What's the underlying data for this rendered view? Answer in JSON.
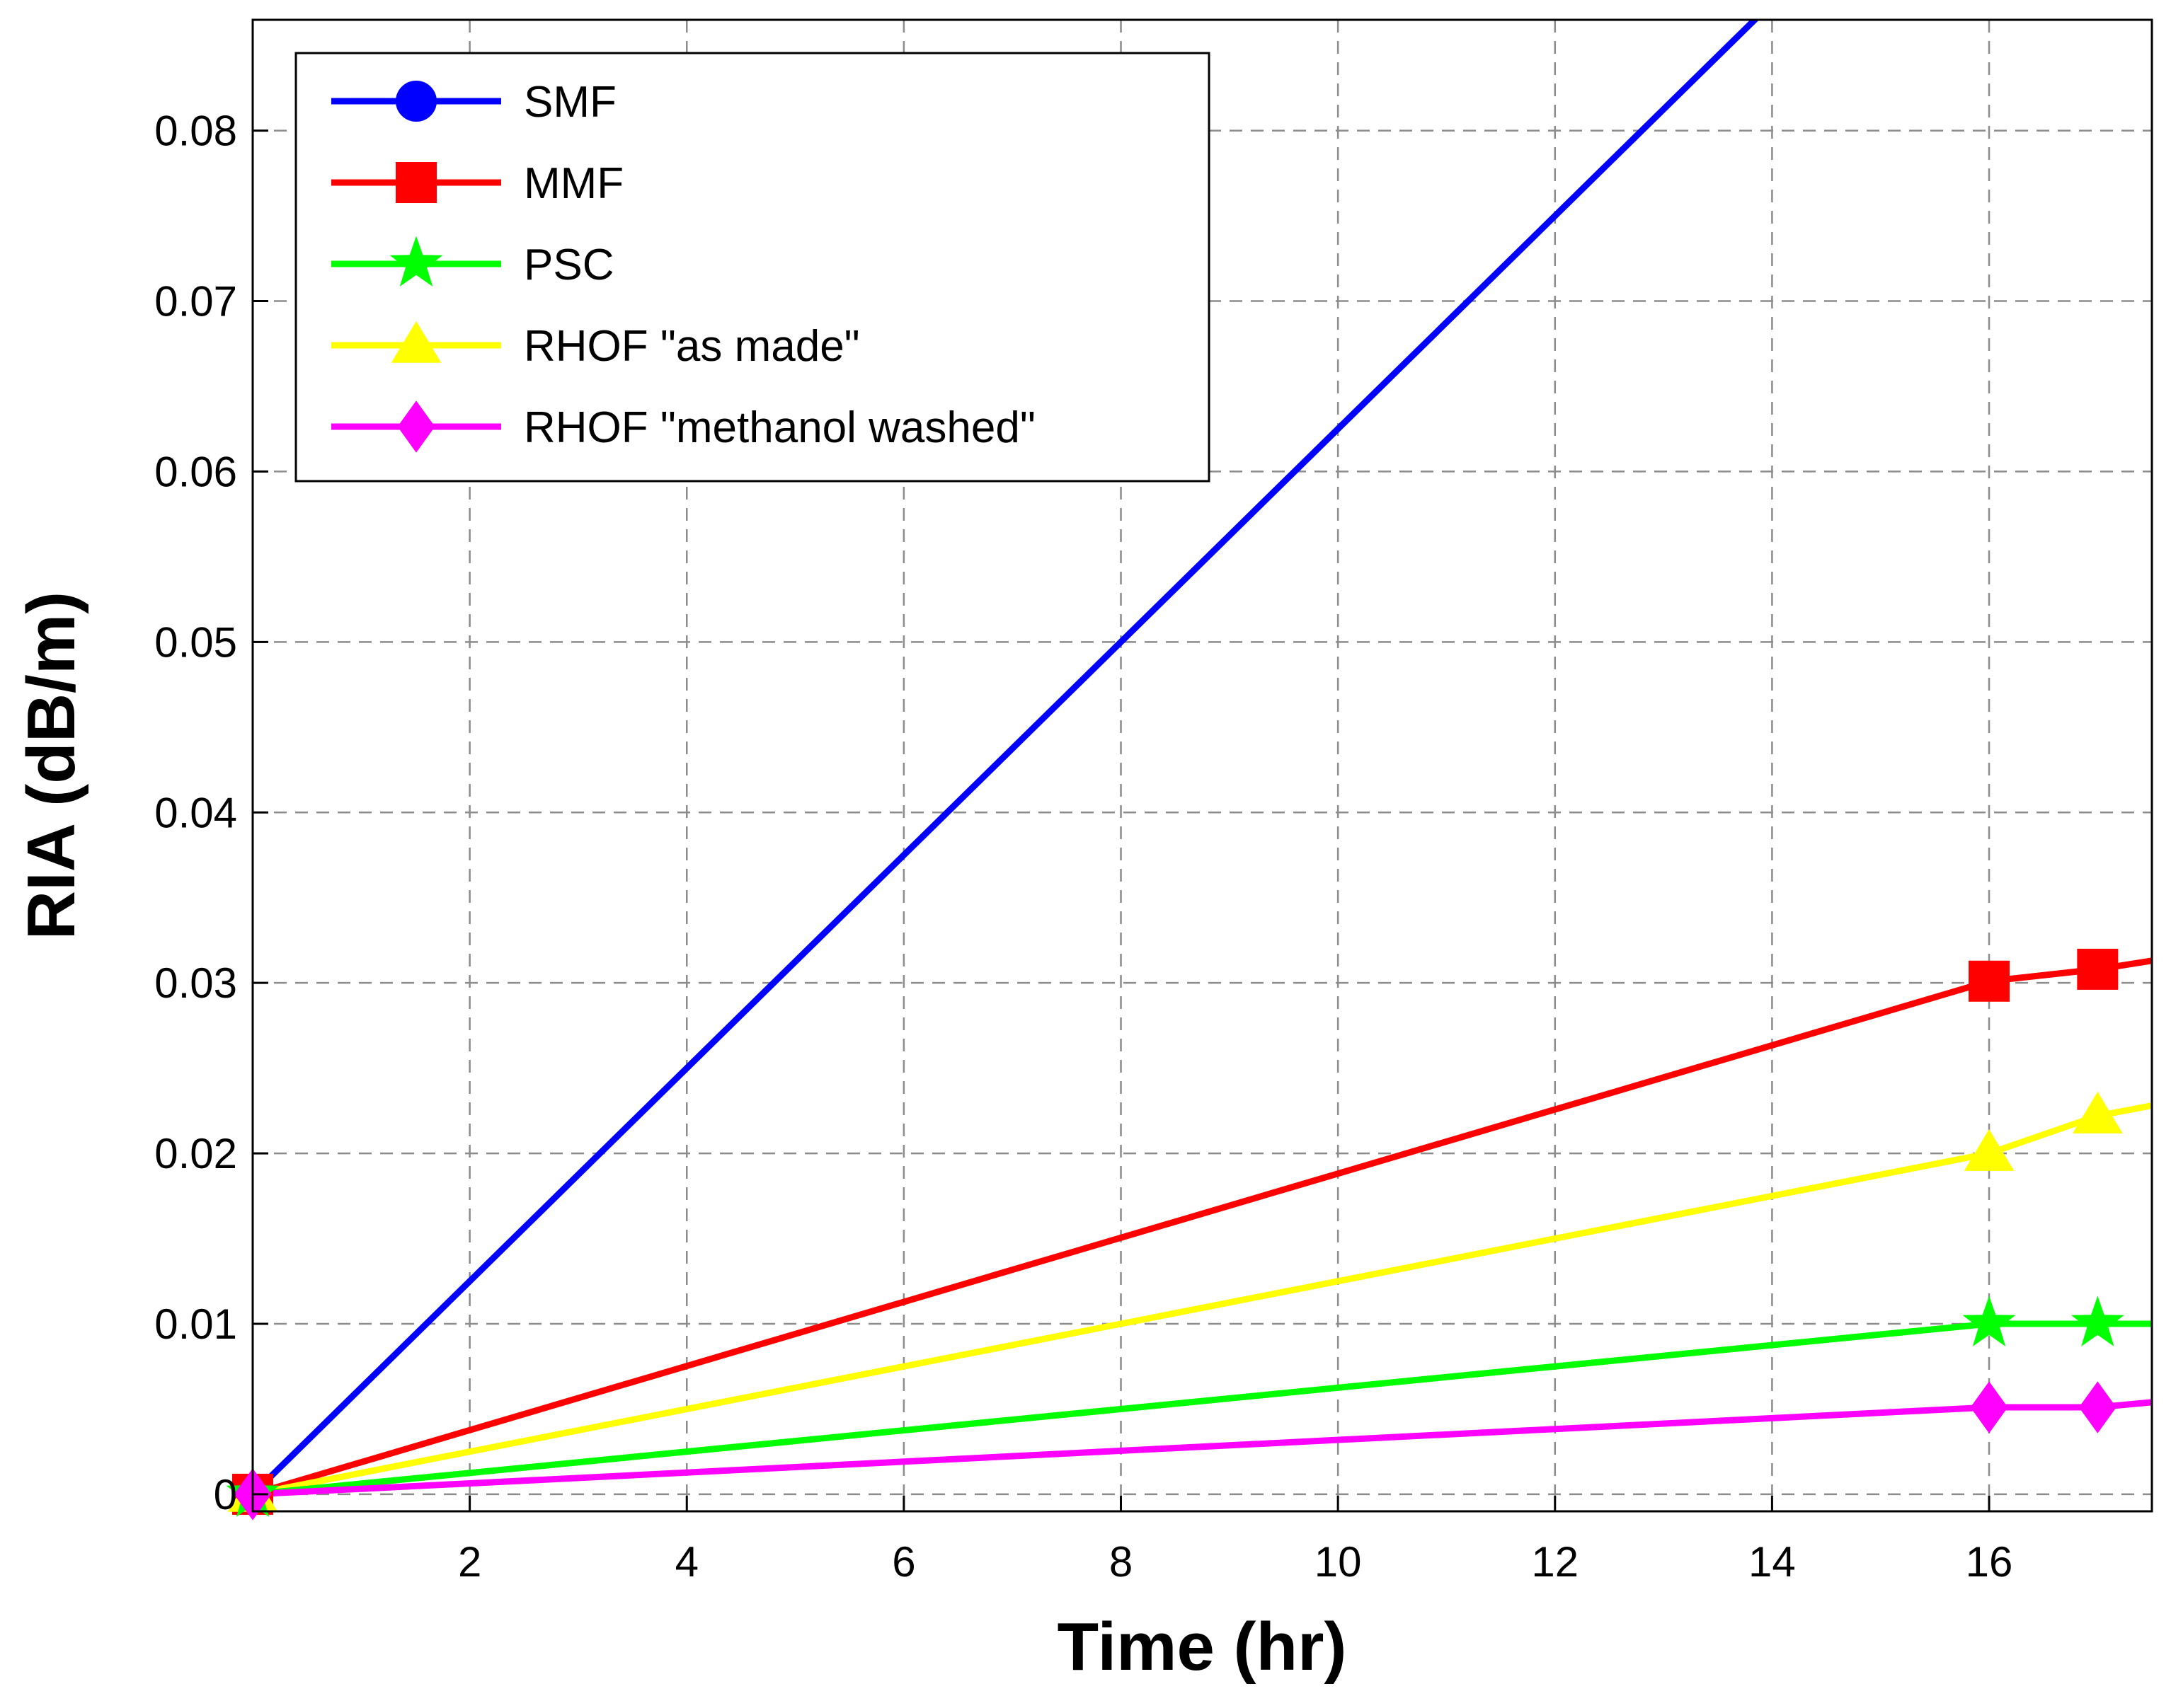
{
  "chart_data": {
    "type": "line",
    "title": "",
    "xlabel": "Time (hr)",
    "ylabel": "RIA (dB/m)",
    "xlim": [
      0,
      17.5
    ],
    "ylim": [
      -0.001,
      0.0865
    ],
    "xticks": [
      2,
      4,
      6,
      8,
      10,
      12,
      14,
      16
    ],
    "yticks": [
      0,
      0.01,
      0.02,
      0.03,
      0.04,
      0.05,
      0.06,
      0.07,
      0.08
    ],
    "ytick_labels": [
      "0",
      "0.01",
      "0.02",
      "0.03",
      "0.04",
      "0.05",
      "0.06",
      "0.07",
      "0.08"
    ],
    "grid": true,
    "legend_position": "top-left",
    "series": [
      {
        "name": "SMF",
        "color": "#0000ff",
        "marker": "circle",
        "x": [
          0,
          14
        ],
        "y": [
          0,
          0.0875
        ],
        "marker_x": [
          0
        ],
        "marker_y": [
          0
        ]
      },
      {
        "name": "MMF",
        "color": "#ff0000",
        "marker": "square",
        "x": [
          0,
          16,
          17,
          17.5
        ],
        "y": [
          0,
          0.0301,
          0.0308,
          0.0313
        ],
        "marker_x": [
          0,
          16,
          17
        ],
        "marker_y": [
          0,
          0.0301,
          0.0308
        ]
      },
      {
        "name": "PSC",
        "color": "#00ff00",
        "marker": "star",
        "x": [
          0,
          16,
          17,
          17.5
        ],
        "y": [
          0,
          0.01,
          0.01,
          0.01
        ],
        "marker_x": [
          0,
          16,
          17
        ],
        "marker_y": [
          0,
          0.01,
          0.01
        ]
      },
      {
        "name": "RHOF \"as made\"",
        "color": "#ffff00",
        "marker": "triangle",
        "x": [
          0,
          16,
          17,
          17.5
        ],
        "y": [
          0,
          0.02,
          0.0222,
          0.0228
        ],
        "marker_x": [
          0,
          16,
          17
        ],
        "marker_y": [
          0,
          0.02,
          0.0222
        ]
      },
      {
        "name": "RHOF \"methanol washed\"",
        "color": "#ff00ff",
        "marker": "diamond",
        "x": [
          0,
          16,
          17,
          17.5
        ],
        "y": [
          0,
          0.0051,
          0.0051,
          0.0054
        ],
        "marker_x": [
          0,
          16,
          17
        ],
        "marker_y": [
          0,
          0.0051,
          0.0051
        ]
      }
    ]
  }
}
